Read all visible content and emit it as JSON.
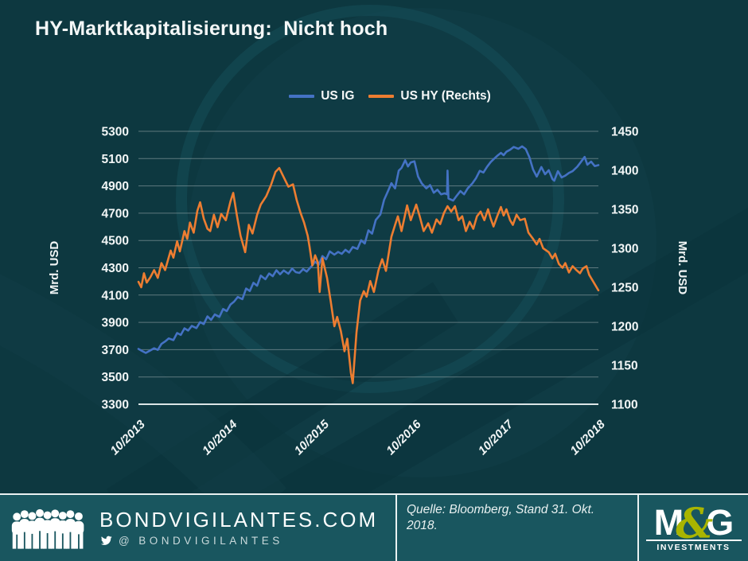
{
  "title": "HY-Marktkapitalisierung:  Nicht hoch",
  "colors": {
    "background": "#0D3840",
    "footer_background": "#19565F",
    "grid": "#93A5A7",
    "axis_line": "#E8EFEF",
    "text": "#F2F6F6",
    "us_ig_blue": "#4472C4",
    "us_hy_orange": "#ED7D31",
    "mg_green": "#A9B500"
  },
  "chart_data": {
    "type": "line",
    "grid": true,
    "legend_position": "top",
    "x_range": [
      0,
      5
    ],
    "x_unit": "years since 10/2013",
    "x_tick_labels": [
      "10/2013",
      "10/2014",
      "10/2015",
      "10/2016",
      "10/2017",
      "10/2018"
    ],
    "left_axis": {
      "label": "Mrd. USD",
      "min": 3300,
      "max": 5300,
      "ticks": [
        5300,
        5100,
        4900,
        4700,
        4500,
        4300,
        4100,
        3900,
        3700,
        3500,
        3300
      ]
    },
    "right_axis": {
      "label": "Mrd. USD",
      "min": 1100,
      "max": 1450,
      "ticks": [
        1450,
        1400,
        1350,
        1300,
        1250,
        1200,
        1150,
        1100
      ]
    },
    "series": [
      {
        "name": "US IG",
        "axis": "left",
        "color": "#4472C4",
        "points": [
          [
            0.0,
            3705
          ],
          [
            0.04,
            3690
          ],
          [
            0.08,
            3676
          ],
          [
            0.13,
            3695
          ],
          [
            0.17,
            3710
          ],
          [
            0.21,
            3698
          ],
          [
            0.25,
            3742
          ],
          [
            0.29,
            3760
          ],
          [
            0.33,
            3782
          ],
          [
            0.38,
            3770
          ],
          [
            0.42,
            3822
          ],
          [
            0.46,
            3808
          ],
          [
            0.5,
            3856
          ],
          [
            0.54,
            3840
          ],
          [
            0.58,
            3874
          ],
          [
            0.63,
            3858
          ],
          [
            0.67,
            3902
          ],
          [
            0.71,
            3888
          ],
          [
            0.75,
            3944
          ],
          [
            0.79,
            3918
          ],
          [
            0.83,
            3958
          ],
          [
            0.88,
            3940
          ],
          [
            0.92,
            3998
          ],
          [
            0.96,
            3982
          ],
          [
            1.0,
            4030
          ],
          [
            1.04,
            4052
          ],
          [
            1.08,
            4086
          ],
          [
            1.13,
            4070
          ],
          [
            1.17,
            4148
          ],
          [
            1.21,
            4130
          ],
          [
            1.25,
            4190
          ],
          [
            1.29,
            4168
          ],
          [
            1.33,
            4242
          ],
          [
            1.38,
            4216
          ],
          [
            1.42,
            4258
          ],
          [
            1.46,
            4238
          ],
          [
            1.5,
            4282
          ],
          [
            1.54,
            4252
          ],
          [
            1.58,
            4280
          ],
          [
            1.63,
            4256
          ],
          [
            1.67,
            4294
          ],
          [
            1.71,
            4268
          ],
          [
            1.75,
            4262
          ],
          [
            1.79,
            4290
          ],
          [
            1.83,
            4272
          ],
          [
            1.88,
            4310
          ],
          [
            1.92,
            4344
          ],
          [
            1.96,
            4322
          ],
          [
            2.0,
            4386
          ],
          [
            2.04,
            4362
          ],
          [
            2.08,
            4420
          ],
          [
            2.13,
            4396
          ],
          [
            2.17,
            4416
          ],
          [
            2.21,
            4402
          ],
          [
            2.25,
            4432
          ],
          [
            2.29,
            4412
          ],
          [
            2.33,
            4452
          ],
          [
            2.38,
            4438
          ],
          [
            2.42,
            4502
          ],
          [
            2.46,
            4478
          ],
          [
            2.5,
            4574
          ],
          [
            2.54,
            4550
          ],
          [
            2.58,
            4650
          ],
          [
            2.63,
            4690
          ],
          [
            2.67,
            4798
          ],
          [
            2.71,
            4858
          ],
          [
            2.75,
            4920
          ],
          [
            2.79,
            4882
          ],
          [
            2.83,
            5012
          ],
          [
            2.86,
            5032
          ],
          [
            2.9,
            5088
          ],
          [
            2.93,
            5042
          ],
          [
            2.96,
            5072
          ],
          [
            3.0,
            5080
          ],
          [
            3.04,
            4968
          ],
          [
            3.08,
            4918
          ],
          [
            3.13,
            4882
          ],
          [
            3.17,
            4906
          ],
          [
            3.21,
            4850
          ],
          [
            3.25,
            4872
          ],
          [
            3.29,
            4838
          ],
          [
            3.33,
            4846
          ],
          [
            3.355,
            4838
          ],
          [
            3.36,
            5012
          ],
          [
            3.37,
            4808
          ],
          [
            3.42,
            4792
          ],
          [
            3.46,
            4828
          ],
          [
            3.5,
            4862
          ],
          [
            3.54,
            4838
          ],
          [
            3.58,
            4882
          ],
          [
            3.63,
            4918
          ],
          [
            3.67,
            4958
          ],
          [
            3.71,
            5010
          ],
          [
            3.75,
            4998
          ],
          [
            3.79,
            5040
          ],
          [
            3.83,
            5075
          ],
          [
            3.86,
            5095
          ],
          [
            3.9,
            5120
          ],
          [
            3.94,
            5142
          ],
          [
            3.97,
            5125
          ],
          [
            4.0,
            5150
          ],
          [
            4.04,
            5165
          ],
          [
            4.08,
            5185
          ],
          [
            4.13,
            5172
          ],
          [
            4.17,
            5190
          ],
          [
            4.21,
            5170
          ],
          [
            4.25,
            5110
          ],
          [
            4.29,
            5020
          ],
          [
            4.33,
            4968
          ],
          [
            4.38,
            5038
          ],
          [
            4.42,
            4985
          ],
          [
            4.46,
            5015
          ],
          [
            4.5,
            4950
          ],
          [
            4.52,
            4938
          ],
          [
            4.56,
            5008
          ],
          [
            4.6,
            4962
          ],
          [
            4.64,
            4975
          ],
          [
            4.68,
            4995
          ],
          [
            4.72,
            5008
          ],
          [
            4.77,
            5040
          ],
          [
            4.81,
            5075
          ],
          [
            4.85,
            5112
          ],
          [
            4.88,
            5055
          ],
          [
            4.92,
            5078
          ],
          [
            4.96,
            5045
          ],
          [
            5.0,
            5052
          ]
        ]
      },
      {
        "name": "US HY (Rechts)",
        "axis": "right",
        "color": "#ED7D31",
        "points": [
          [
            0.0,
            1257
          ],
          [
            0.03,
            1250
          ],
          [
            0.06,
            1268
          ],
          [
            0.09,
            1256
          ],
          [
            0.13,
            1263
          ],
          [
            0.17,
            1272
          ],
          [
            0.21,
            1262
          ],
          [
            0.25,
            1281
          ],
          [
            0.29,
            1272
          ],
          [
            0.35,
            1297
          ],
          [
            0.38,
            1288
          ],
          [
            0.42,
            1309
          ],
          [
            0.45,
            1296
          ],
          [
            0.5,
            1322
          ],
          [
            0.53,
            1312
          ],
          [
            0.56,
            1333
          ],
          [
            0.6,
            1320
          ],
          [
            0.64,
            1348
          ],
          [
            0.67,
            1359
          ],
          [
            0.71,
            1338
          ],
          [
            0.75,
            1325
          ],
          [
            0.78,
            1322
          ],
          [
            0.82,
            1343
          ],
          [
            0.86,
            1327
          ],
          [
            0.9,
            1344
          ],
          [
            0.95,
            1336
          ],
          [
            1.0,
            1360
          ],
          [
            1.03,
            1371
          ],
          [
            1.07,
            1342
          ],
          [
            1.11,
            1316
          ],
          [
            1.16,
            1295
          ],
          [
            1.2,
            1330
          ],
          [
            1.24,
            1319
          ],
          [
            1.29,
            1343
          ],
          [
            1.33,
            1356
          ],
          [
            1.39,
            1367
          ],
          [
            1.44,
            1381
          ],
          [
            1.49,
            1398
          ],
          [
            1.53,
            1403
          ],
          [
            1.58,
            1391
          ],
          [
            1.63,
            1379
          ],
          [
            1.68,
            1382
          ],
          [
            1.72,
            1362
          ],
          [
            1.76,
            1346
          ],
          [
            1.8,
            1333
          ],
          [
            1.84,
            1316
          ],
          [
            1.86,
            1302
          ],
          [
            1.89,
            1278
          ],
          [
            1.92,
            1291
          ],
          [
            1.95,
            1282
          ],
          [
            1.97,
            1244
          ],
          [
            2.0,
            1287
          ],
          [
            2.05,
            1262
          ],
          [
            2.09,
            1232
          ],
          [
            2.13,
            1200
          ],
          [
            2.16,
            1212
          ],
          [
            2.2,
            1194
          ],
          [
            2.24,
            1168
          ],
          [
            2.27,
            1184
          ],
          [
            2.31,
            1140
          ],
          [
            2.33,
            1127
          ],
          [
            2.37,
            1192
          ],
          [
            2.41,
            1233
          ],
          [
            2.45,
            1245
          ],
          [
            2.48,
            1238
          ],
          [
            2.52,
            1258
          ],
          [
            2.56,
            1244
          ],
          [
            2.61,
            1272
          ],
          [
            2.65,
            1286
          ],
          [
            2.69,
            1271
          ],
          [
            2.75,
            1315
          ],
          [
            2.79,
            1330
          ],
          [
            2.82,
            1341
          ],
          [
            2.86,
            1322
          ],
          [
            2.92,
            1355
          ],
          [
            2.96,
            1336
          ],
          [
            3.02,
            1356
          ],
          [
            3.06,
            1340
          ],
          [
            3.1,
            1322
          ],
          [
            3.15,
            1332
          ],
          [
            3.19,
            1320
          ],
          [
            3.24,
            1337
          ],
          [
            3.28,
            1331
          ],
          [
            3.32,
            1345
          ],
          [
            3.36,
            1354
          ],
          [
            3.4,
            1347
          ],
          [
            3.44,
            1354
          ],
          [
            3.48,
            1336
          ],
          [
            3.52,
            1341
          ],
          [
            3.56,
            1322
          ],
          [
            3.6,
            1334
          ],
          [
            3.64,
            1325
          ],
          [
            3.68,
            1341
          ],
          [
            3.72,
            1347
          ],
          [
            3.76,
            1336
          ],
          [
            3.8,
            1350
          ],
          [
            3.83,
            1338
          ],
          [
            3.86,
            1328
          ],
          [
            3.9,
            1341
          ],
          [
            3.94,
            1353
          ],
          [
            3.97,
            1342
          ],
          [
            4.0,
            1350
          ],
          [
            4.04,
            1336
          ],
          [
            4.07,
            1330
          ],
          [
            4.11,
            1343
          ],
          [
            4.15,
            1336
          ],
          [
            4.2,
            1338
          ],
          [
            4.24,
            1320
          ],
          [
            4.29,
            1312
          ],
          [
            4.33,
            1305
          ],
          [
            4.36,
            1312
          ],
          [
            4.4,
            1300
          ],
          [
            4.46,
            1295
          ],
          [
            4.5,
            1287
          ],
          [
            4.53,
            1293
          ],
          [
            4.57,
            1280
          ],
          [
            4.61,
            1275
          ],
          [
            4.64,
            1281
          ],
          [
            4.68,
            1269
          ],
          [
            4.72,
            1277
          ],
          [
            4.76,
            1272
          ],
          [
            4.8,
            1268
          ],
          [
            4.83,
            1274
          ],
          [
            4.87,
            1277
          ],
          [
            4.9,
            1266
          ],
          [
            4.94,
            1258
          ],
          [
            5.0,
            1246
          ]
        ]
      }
    ]
  },
  "footer": {
    "site": "BONDVIGILANTES.COM",
    "twitter_at": "@",
    "twitter_name": "BONDVIGILANTES",
    "source": "Quelle: Bloomberg, Stand 31. Okt. 2018.",
    "logo": {
      "m": "M",
      "amp": "&",
      "g": "G",
      "subtitle": "INVESTMENTS"
    }
  }
}
